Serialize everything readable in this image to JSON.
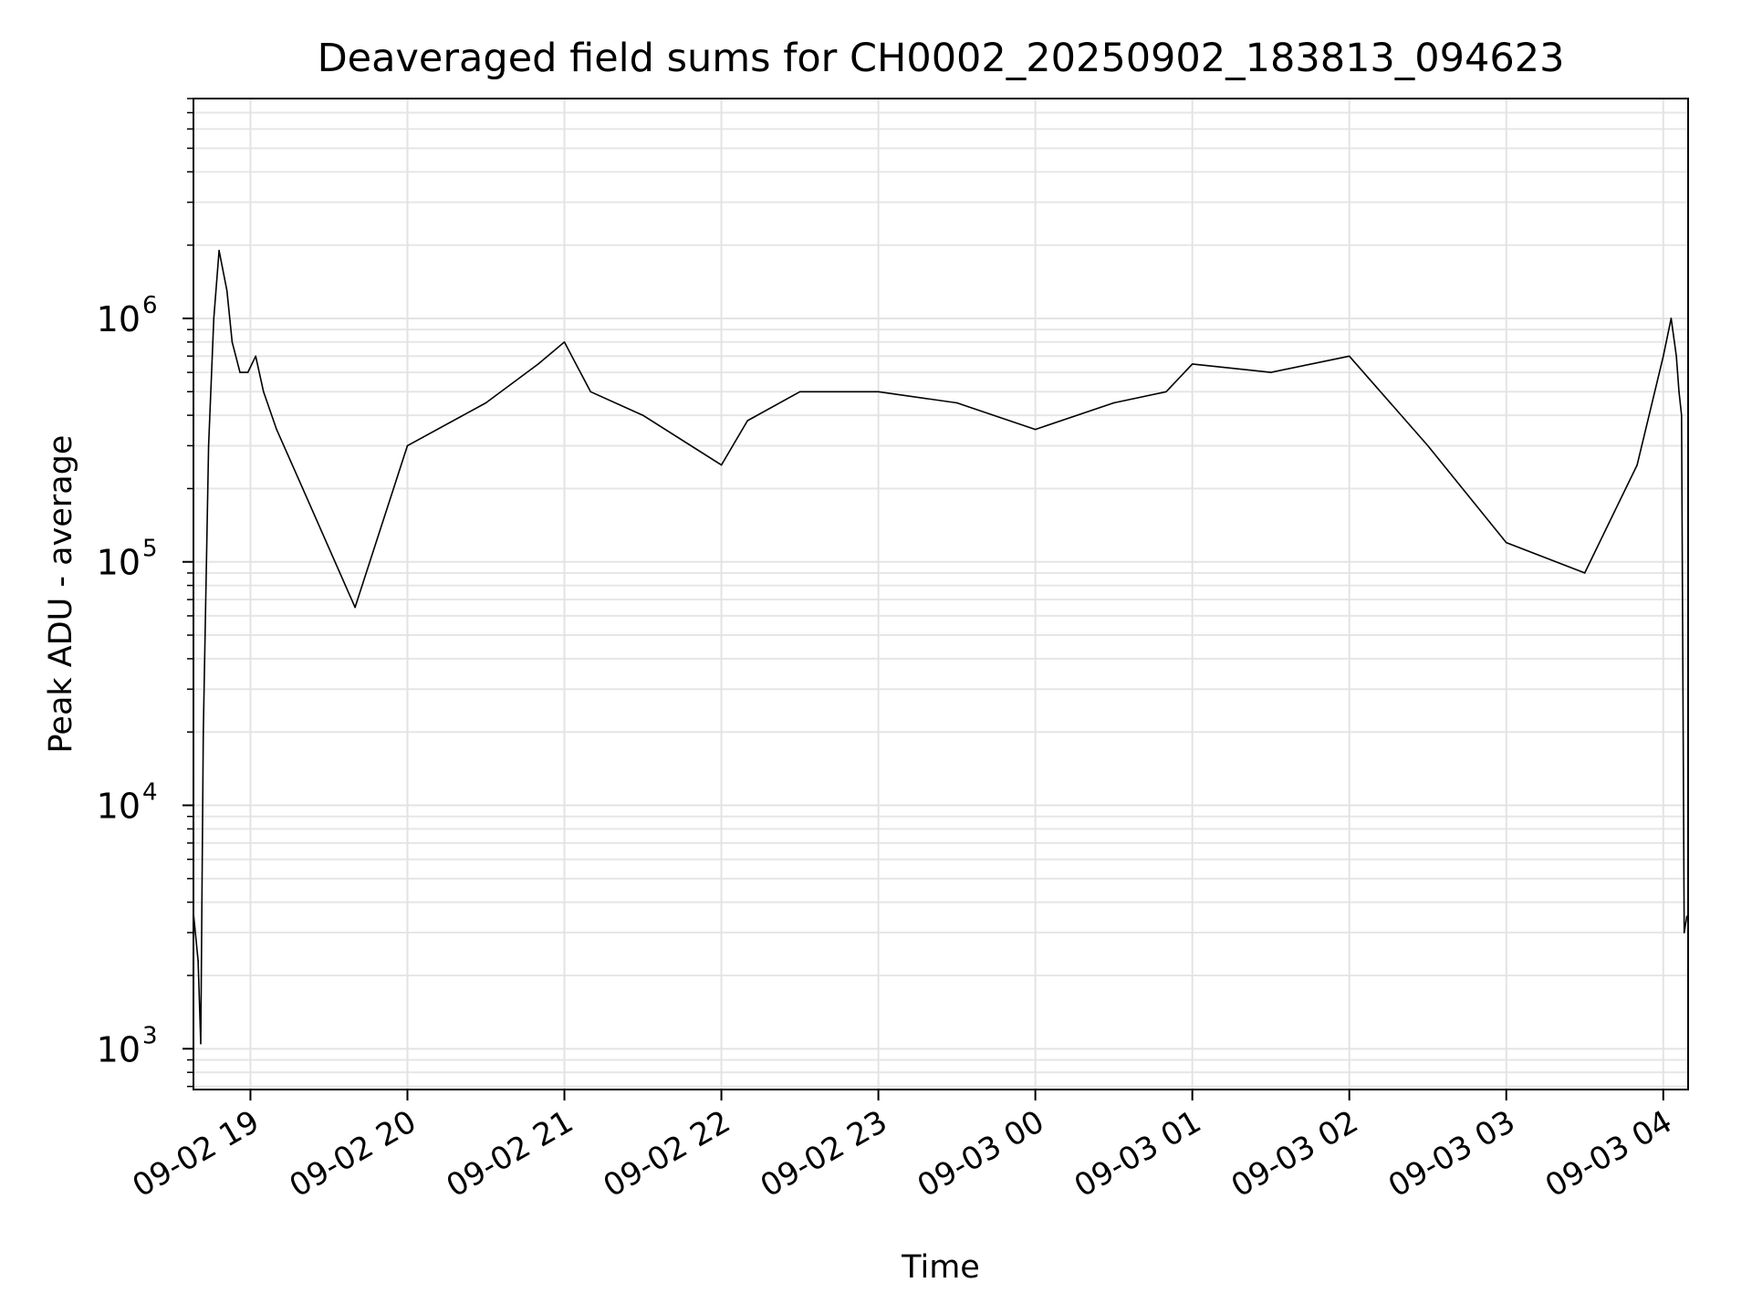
{
  "chart_data": {
    "type": "line",
    "title": "Deaveraged field sums for CH0002_20250902_183813_094623",
    "xlabel": "Time",
    "ylabel": "Peak ADU - average",
    "x_axis_type": "datetime",
    "xlim": [
      "2025-09-02 18:38:13",
      "2025-09-03 04:09:30"
    ],
    "ylim": [
      680,
      8000000
    ],
    "y_scale": "log",
    "grid": "major and minor, light gray",
    "legend": "none",
    "x_tick_labels": [
      "09-02 19",
      "09-02 20",
      "09-02 21",
      "09-02 22",
      "09-02 23",
      "09-03 00",
      "09-03 01",
      "09-03 02",
      "09-03 03",
      "09-03 04"
    ],
    "x_tick_values": [
      "2025-09-02 19:00",
      "2025-09-02 20:00",
      "2025-09-02 21:00",
      "2025-09-02 22:00",
      "2025-09-02 23:00",
      "2025-09-03 00:00",
      "2025-09-03 01:00",
      "2025-09-03 02:00",
      "2025-09-03 03:00",
      "2025-09-03 04:00"
    ],
    "y_tick_labels": [
      {
        "base": "10",
        "exp": "3"
      },
      {
        "base": "10",
        "exp": "4"
      },
      {
        "base": "10",
        "exp": "5"
      },
      {
        "base": "10",
        "exp": "6"
      }
    ],
    "y_tick_values": [
      1000,
      10000,
      100000,
      1000000
    ],
    "line_color": "#000000",
    "series": [
      {
        "x": [
          "2025-09-02 18:38",
          "2025-09-02 18:40",
          "2025-09-02 18:41",
          "2025-09-02 18:42",
          "2025-09-02 18:44",
          "2025-09-02 18:46",
          "2025-09-02 18:48",
          "2025-09-02 18:51",
          "2025-09-02 18:53",
          "2025-09-02 18:56",
          "2025-09-02 18:59",
          "2025-09-02 19:02",
          "2025-09-02 19:05",
          "2025-09-02 19:10",
          "2025-09-02 19:20",
          "2025-09-02 19:40",
          "2025-09-02 20:00",
          "2025-09-02 20:30",
          "2025-09-02 20:50",
          "2025-09-02 21:00",
          "2025-09-02 21:10",
          "2025-09-02 21:30",
          "2025-09-02 22:00",
          "2025-09-02 22:10",
          "2025-09-02 22:30",
          "2025-09-02 23:00",
          "2025-09-02 23:30",
          "2025-09-03 00:00",
          "2025-09-03 00:30",
          "2025-09-03 00:50",
          "2025-09-03 01:00",
          "2025-09-03 01:30",
          "2025-09-03 02:00",
          "2025-09-03 02:30",
          "2025-09-03 03:00",
          "2025-09-03 03:30",
          "2025-09-03 03:50",
          "2025-09-03 04:00",
          "2025-09-03 04:03",
          "2025-09-03 04:05",
          "2025-09-03 04:06",
          "2025-09-03 04:07",
          "2025-09-03 04:08",
          "2025-09-03 04:09"
        ],
        "y": [
          3800,
          2300,
          1050,
          20000,
          300000,
          1000000,
          1900000,
          1300000,
          800000,
          600000,
          600000,
          700000,
          500000,
          350000,
          200000,
          65000,
          300000,
          450000,
          650000,
          800000,
          500000,
          400000,
          250000,
          380000,
          500000,
          500000,
          450000,
          350000,
          450000,
          500000,
          650000,
          600000,
          700000,
          300000,
          120000,
          90000,
          250000,
          700000,
          1000000,
          700000,
          500000,
          400000,
          3000,
          3500
        ]
      }
    ]
  }
}
